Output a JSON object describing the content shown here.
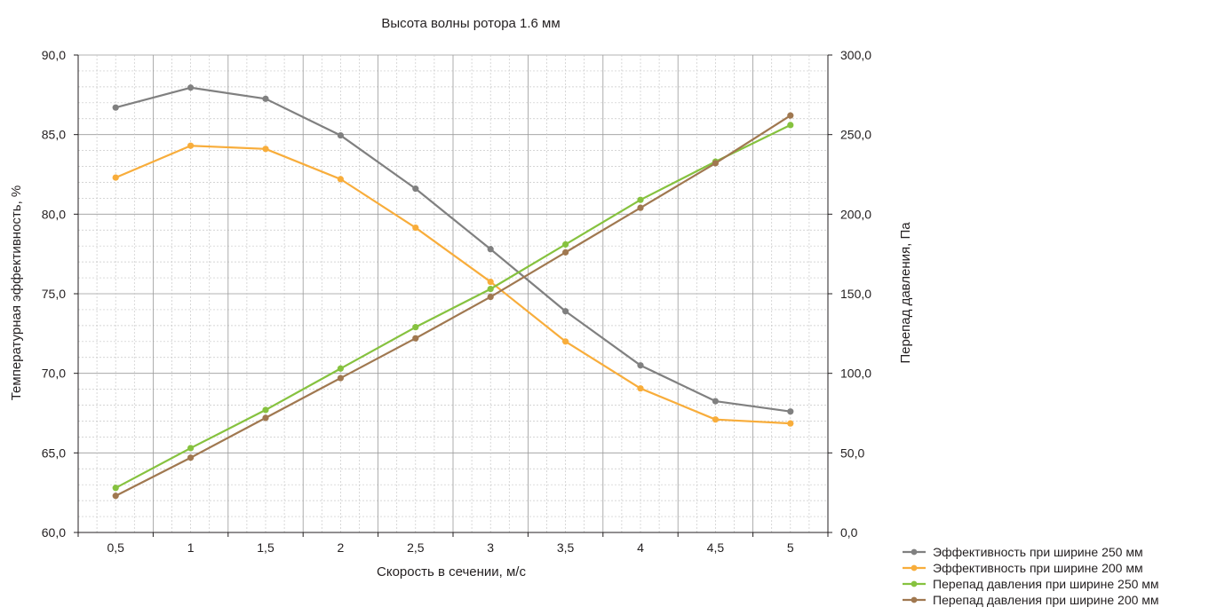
{
  "chart_data": {
    "type": "line",
    "title": "Высота волны ротора 1.6 мм",
    "xlabel": "Скорость в сечении, м/с",
    "ylabel_left": "Температурная эффективность, %",
    "ylabel_right": "Перепад давления, Па",
    "categories": [
      "0,5",
      "1",
      "1,5",
      "2",
      "2,5",
      "3",
      "3,5",
      "4",
      "4,5",
      "5"
    ],
    "x": [
      0.5,
      1,
      1.5,
      2,
      2.5,
      3,
      3.5,
      4,
      4.5,
      5
    ],
    "ylim_left": [
      60,
      90
    ],
    "ylim_right": [
      0,
      300
    ],
    "yticks_left": [
      "60,0",
      "65,0",
      "70,0",
      "75,0",
      "80,0",
      "85,0",
      "90,0"
    ],
    "yticks_right": [
      "0,0",
      "50,0",
      "100,0",
      "150,0",
      "200,0",
      "250,0",
      "300,0"
    ],
    "grid": true,
    "legend_position": "bottom-right",
    "series": [
      {
        "name": "Эффективность при ширине 250 мм",
        "axis": "left",
        "color": "#808080",
        "values": [
          86.7,
          87.95,
          87.25,
          84.95,
          81.6,
          77.8,
          73.9,
          70.5,
          68.25,
          67.6
        ]
      },
      {
        "name": "Эффективность при ширине 200 мм",
        "axis": "left",
        "color": "#f8ad3b",
        "values": [
          82.3,
          84.3,
          84.1,
          82.2,
          79.15,
          75.75,
          72.0,
          69.05,
          67.1,
          66.85
        ]
      },
      {
        "name": "Перепад давления при ширине 250 мм",
        "axis": "right",
        "color": "#86c23f",
        "values": [
          28,
          53,
          77,
          103,
          129,
          153,
          181,
          209,
          233,
          256
        ]
      },
      {
        "name": "Перепад давления при ширине 200 мм",
        "axis": "right",
        "color": "#a07850",
        "values": [
          23,
          47,
          72,
          97,
          122,
          148,
          176,
          204,
          232,
          262
        ]
      }
    ]
  }
}
